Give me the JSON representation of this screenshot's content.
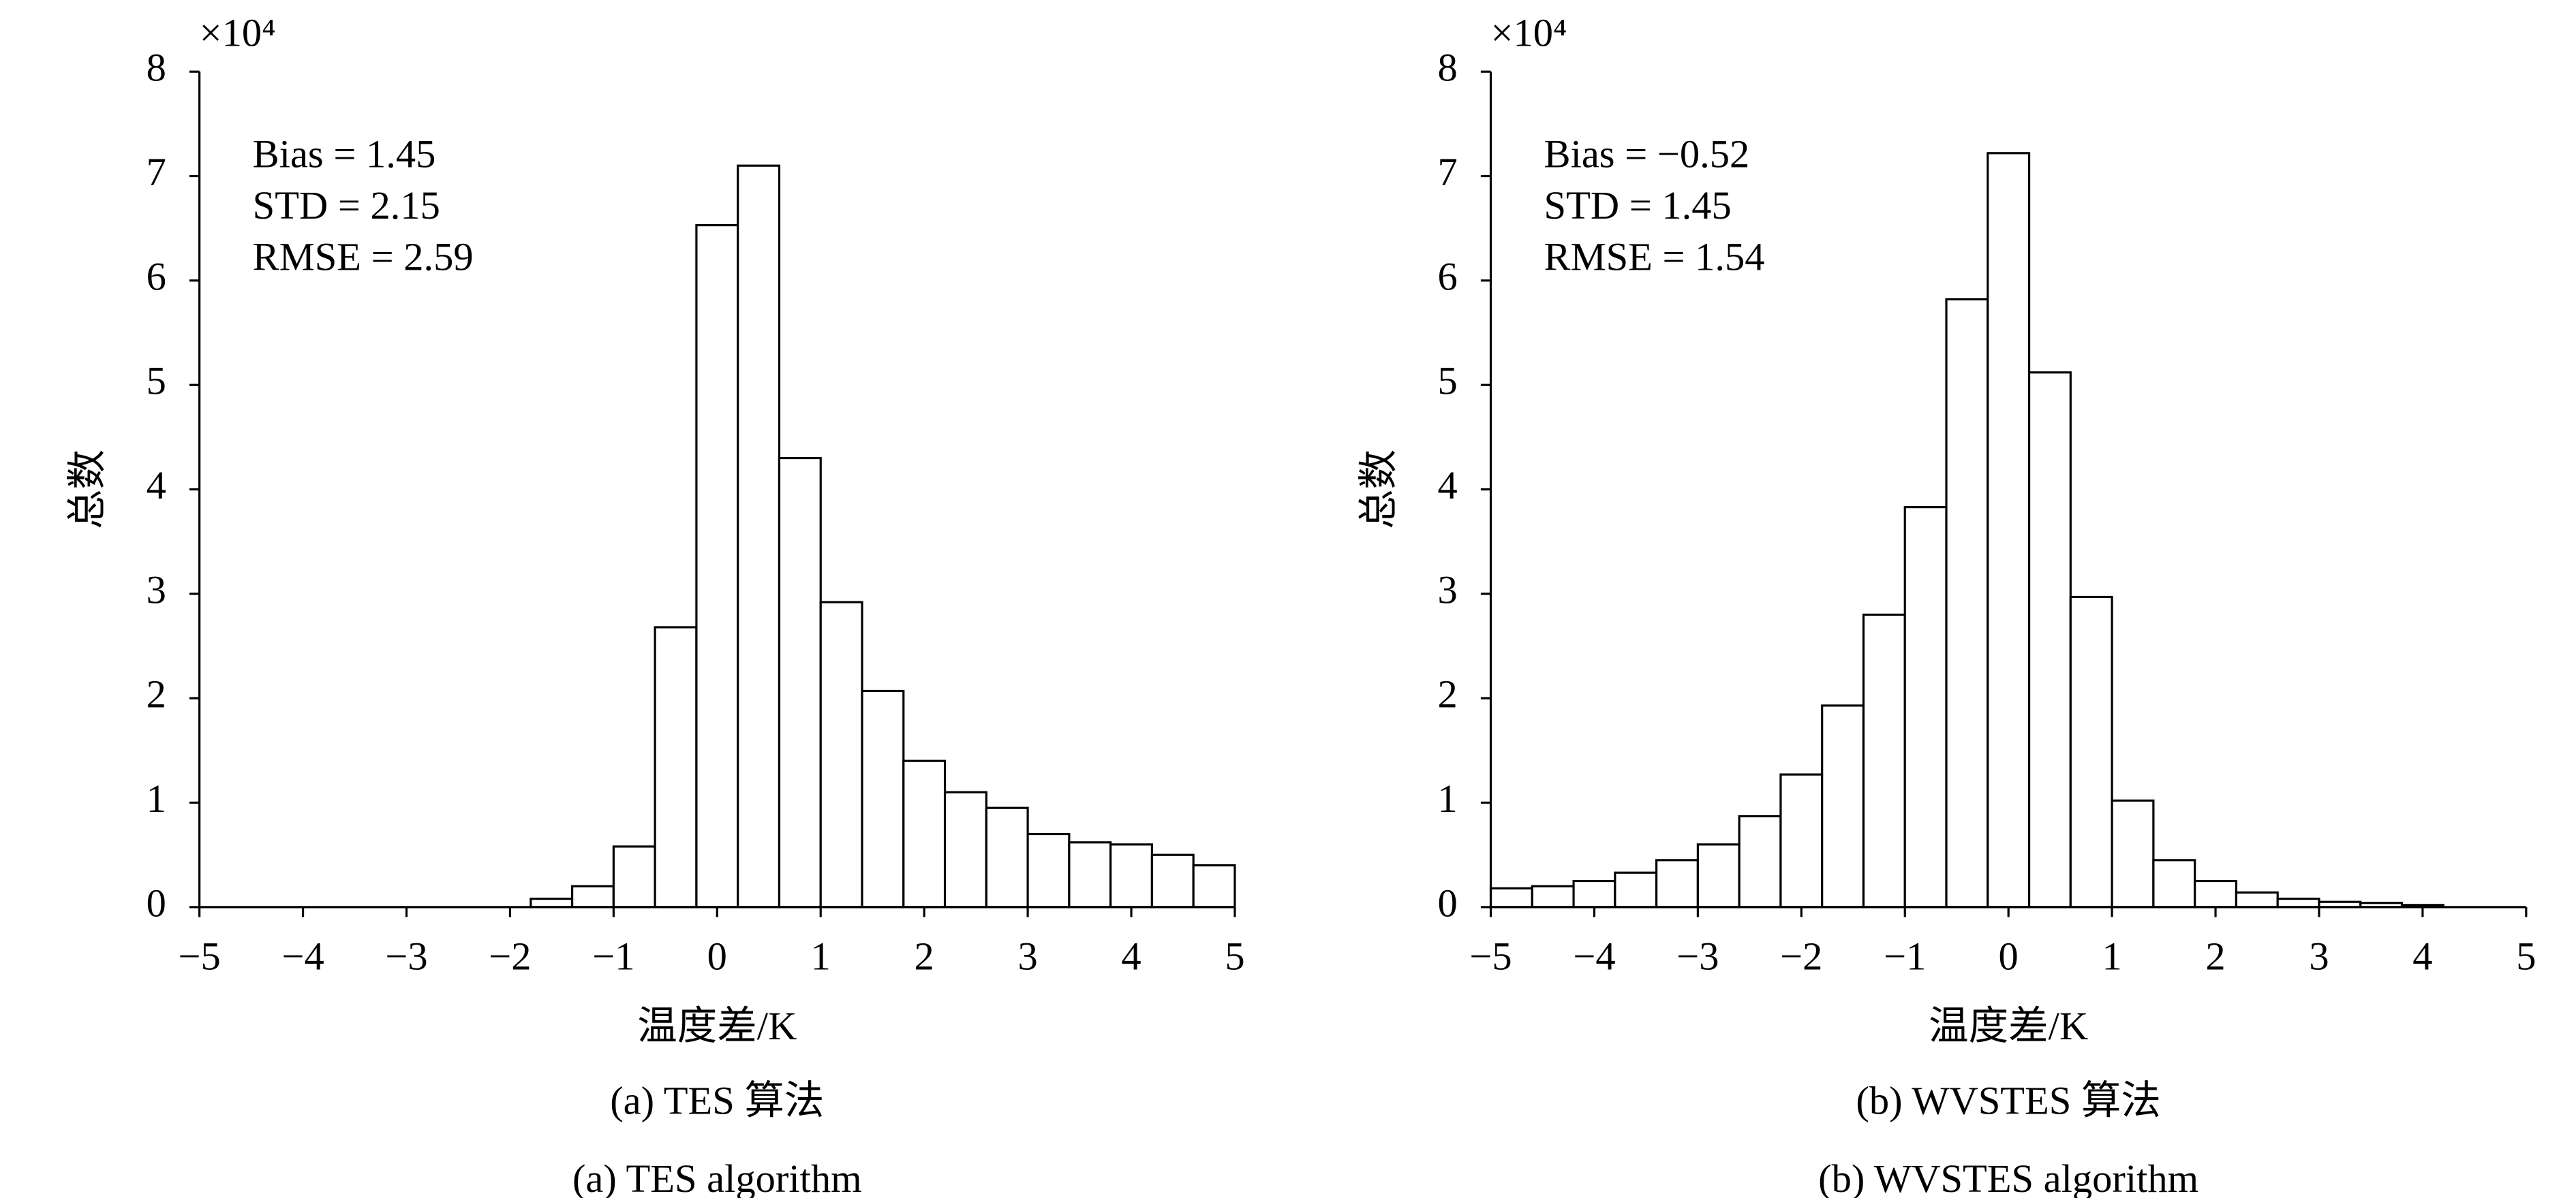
{
  "chart_data": [
    {
      "type": "histogram",
      "multiplier": "×10⁴",
      "ylabel": "总数",
      "xlabel": "温度差/K",
      "caption": "(a) TES 算法",
      "caption_en": "(a) TES algorithm",
      "annotations": [
        "Bias = 1.45",
        "STD = 2.15",
        "RMSE = 2.59"
      ],
      "color": "#ffffff",
      "bins": [
        -5,
        -4.6,
        -4.2,
        -3.8,
        -3.4,
        -3.0,
        -2.6,
        -2.2,
        -1.8,
        -1.4,
        -1.0,
        -0.6,
        -0.2,
        0.2,
        0.6,
        1.0,
        1.4,
        1.8,
        2.2,
        2.6,
        3.0,
        3.4,
        3.8,
        4.2,
        4.6,
        5.0
      ],
      "values": [
        0,
        0,
        0,
        0,
        0,
        0,
        0,
        0,
        0.08,
        0.2,
        0.58,
        2.68,
        6.53,
        7.1,
        4.3,
        2.92,
        2.07,
        1.4,
        1.1,
        0.95,
        0.7,
        0.62,
        0.6,
        0.5,
        0.4
      ],
      "xlim": [
        -5,
        5
      ],
      "ylim": [
        0,
        8
      ],
      "xticks": [
        {
          "value": -5,
          "label": "−5"
        },
        {
          "value": -4,
          "label": "−4"
        },
        {
          "value": -3,
          "label": "−3"
        },
        {
          "value": -2,
          "label": "−2"
        },
        {
          "value": -1,
          "label": "−1"
        },
        0,
        1,
        2,
        3,
        4,
        5
      ],
      "yticks": [
        0,
        1,
        2,
        3,
        4,
        5,
        6,
        7,
        8
      ]
    },
    {
      "type": "histogram",
      "multiplier": "×10⁴",
      "ylabel": "总数",
      "xlabel": "温度差/K",
      "caption": "(b) WVSTES 算法",
      "caption_en": "(b) WVSTES algorithm",
      "annotations": [
        "Bias = −0.52",
        "STD = 1.45",
        "RMSE = 1.54"
      ],
      "color": "#ffffff",
      "bins": [
        -5,
        -4.6,
        -4.2,
        -3.8,
        -3.4,
        -3.0,
        -2.6,
        -2.2,
        -1.8,
        -1.4,
        -1.0,
        -0.6,
        -0.2,
        0.2,
        0.6,
        1.0,
        1.4,
        1.8,
        2.2,
        2.6,
        3.0,
        3.4,
        3.8,
        4.2,
        4.6,
        5.0
      ],
      "values": [
        0.18,
        0.2,
        0.25,
        0.33,
        0.45,
        0.6,
        0.87,
        1.27,
        1.93,
        2.8,
        3.83,
        5.82,
        7.22,
        5.12,
        2.97,
        1.02,
        0.45,
        0.25,
        0.14,
        0.08,
        0.05,
        0.04,
        0.02,
        0,
        0
      ],
      "xlim": [
        -5,
        5
      ],
      "ylim": [
        0,
        8
      ],
      "xticks": [
        {
          "value": -5,
          "label": "−5"
        },
        {
          "value": -4,
          "label": "−4"
        },
        {
          "value": -3,
          "label": "−3"
        },
        {
          "value": -2,
          "label": "−2"
        },
        {
          "value": -1,
          "label": "−1"
        },
        0,
        1,
        2,
        3,
        4,
        5
      ],
      "yticks": [
        0,
        1,
        2,
        3,
        4,
        5,
        6,
        7,
        8
      ]
    }
  ]
}
